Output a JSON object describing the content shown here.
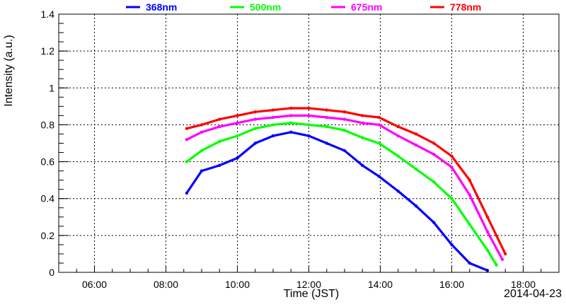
{
  "chart_data": {
    "type": "scatter",
    "xlabel": "Time (JST)",
    "ylabel": "Intensity (a.u.)",
    "date_label": "2014-04-23",
    "xlim": [
      "05:00",
      "19:00"
    ],
    "ylim": [
      0,
      1.4
    ],
    "grid": true,
    "legend_placement": "top",
    "x_ticks": [
      "06:00",
      "08:00",
      "10:00",
      "12:00",
      "14:00",
      "16:00",
      "18:00"
    ],
    "y_ticks": [
      "0",
      "0.2",
      "0.4",
      "0.6",
      "0.8",
      "1",
      "1.2",
      "1.4"
    ],
    "series": [
      {
        "name": "368nm",
        "color": "#0000ff",
        "points": [
          [
            "08:35",
            0.43
          ],
          [
            "09:00",
            0.55
          ],
          [
            "09:30",
            0.58
          ],
          [
            "10:00",
            0.62
          ],
          [
            "10:30",
            0.7
          ],
          [
            "11:00",
            0.74
          ],
          [
            "11:30",
            0.76
          ],
          [
            "12:00",
            0.74
          ],
          [
            "12:30",
            0.7
          ],
          [
            "13:00",
            0.66
          ],
          [
            "13:30",
            0.58
          ],
          [
            "13:58",
            0.52
          ],
          [
            "14:30",
            0.44
          ],
          [
            "15:00",
            0.36
          ],
          [
            "15:30",
            0.27
          ],
          [
            "16:00",
            0.15
          ],
          [
            "16:30",
            0.05
          ],
          [
            "17:00",
            0.01
          ]
        ]
      },
      {
        "name": "500nm",
        "color": "#00ff00",
        "points": [
          [
            "08:35",
            0.6
          ],
          [
            "09:00",
            0.66
          ],
          [
            "09:30",
            0.71
          ],
          [
            "10:00",
            0.74
          ],
          [
            "10:30",
            0.78
          ],
          [
            "11:00",
            0.8
          ],
          [
            "11:30",
            0.81
          ],
          [
            "12:00",
            0.8
          ],
          [
            "12:30",
            0.79
          ],
          [
            "13:00",
            0.77
          ],
          [
            "13:30",
            0.73
          ],
          [
            "13:58",
            0.7
          ],
          [
            "14:30",
            0.63
          ],
          [
            "15:00",
            0.56
          ],
          [
            "15:30",
            0.49
          ],
          [
            "16:00",
            0.4
          ],
          [
            "16:30",
            0.26
          ],
          [
            "17:00",
            0.12
          ],
          [
            "17:15",
            0.04
          ]
        ]
      },
      {
        "name": "675nm",
        "color": "#ff00ff",
        "points": [
          [
            "08:35",
            0.72
          ],
          [
            "09:00",
            0.76
          ],
          [
            "09:30",
            0.79
          ],
          [
            "10:00",
            0.81
          ],
          [
            "10:30",
            0.83
          ],
          [
            "11:00",
            0.84
          ],
          [
            "11:30",
            0.85
          ],
          [
            "12:00",
            0.85
          ],
          [
            "12:30",
            0.84
          ],
          [
            "13:00",
            0.83
          ],
          [
            "13:30",
            0.81
          ],
          [
            "13:58",
            0.8
          ],
          [
            "14:30",
            0.74
          ],
          [
            "15:00",
            0.69
          ],
          [
            "15:30",
            0.64
          ],
          [
            "16:00",
            0.57
          ],
          [
            "16:30",
            0.42
          ],
          [
            "17:00",
            0.22
          ],
          [
            "17:25",
            0.07
          ]
        ]
      },
      {
        "name": "778nm",
        "color": "#ff0000",
        "points": [
          [
            "08:35",
            0.78
          ],
          [
            "09:00",
            0.8
          ],
          [
            "09:30",
            0.83
          ],
          [
            "10:00",
            0.85
          ],
          [
            "10:30",
            0.87
          ],
          [
            "11:00",
            0.88
          ],
          [
            "11:30",
            0.89
          ],
          [
            "12:00",
            0.89
          ],
          [
            "12:30",
            0.88
          ],
          [
            "13:00",
            0.87
          ],
          [
            "13:30",
            0.85
          ],
          [
            "13:58",
            0.84
          ],
          [
            "14:30",
            0.79
          ],
          [
            "15:00",
            0.75
          ],
          [
            "15:30",
            0.7
          ],
          [
            "16:00",
            0.63
          ],
          [
            "16:30",
            0.5
          ],
          [
            "17:00",
            0.3
          ],
          [
            "17:30",
            0.1
          ]
        ]
      }
    ]
  }
}
